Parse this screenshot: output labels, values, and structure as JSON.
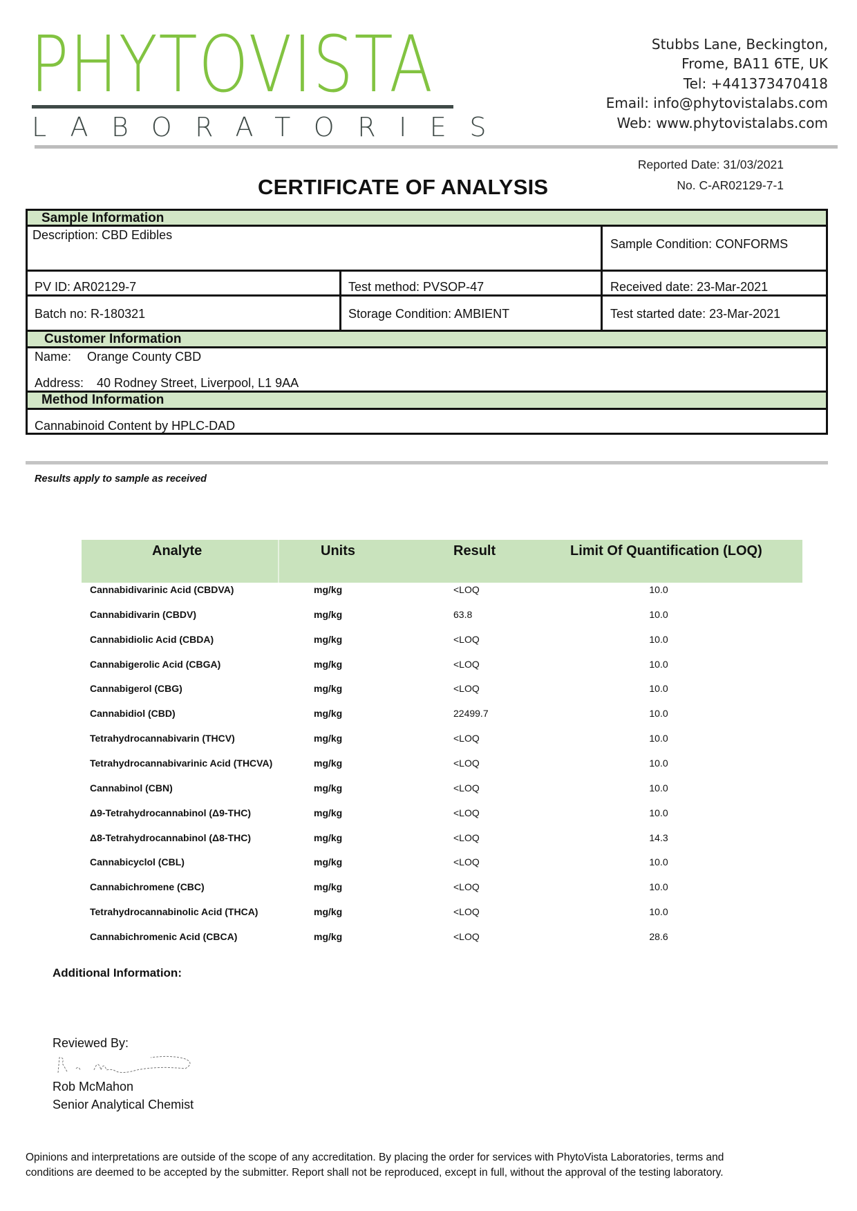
{
  "header": {
    "logo_main": "PHYTOVISTA",
    "logo_sub": "LABORATORIES",
    "address": [
      "Stubbs Lane, Beckington,",
      "Frome, BA11 6TE, UK",
      "Tel: +441373470418",
      "Email: info@phytovistalabs.com",
      "Web: www.phytovistalabs.com"
    ],
    "brand_color": "#82c341"
  },
  "report": {
    "reported_date": "Reported Date: 31/03/2021",
    "number": "No. C-AR02129-7-1",
    "title": "CERTIFICATE OF ANALYSIS"
  },
  "sample": {
    "heading": "Sample Information",
    "description": "Description: CBD Edibles",
    "condition": "Sample Condition: CONFORMS",
    "pv_id": "PV ID: AR02129-7",
    "test_method": "Test method: PVSOP-47",
    "received": "Received date: 23-Mar-2021",
    "batch": "Batch no: R-180321",
    "storage": "Storage Condition: AMBIENT",
    "test_started": "Test started date: 23-Mar-2021"
  },
  "customer": {
    "heading": "Customer Information",
    "name_label": "Name:",
    "name": "Orange County CBD",
    "address_label": "Address:",
    "address": "40 Rodney Street, Liverpool, L1 9AA"
  },
  "method": {
    "heading": "Method Information",
    "text": "Cannabinoid Content by HPLC-DAD"
  },
  "note": "Results apply to sample as received",
  "results": {
    "headers": [
      "Analyte",
      "Units",
      "Result",
      "Limit Of Quantification (LOQ)"
    ],
    "rows": [
      [
        "Cannabidivarinic Acid (CBDVA)",
        "mg/kg",
        "<LOQ",
        "10.0"
      ],
      [
        "Cannabidivarin (CBDV)",
        "mg/kg",
        "63.8",
        "10.0"
      ],
      [
        "Cannabidiolic Acid (CBDA)",
        "mg/kg",
        "<LOQ",
        "10.0"
      ],
      [
        "Cannabigerolic Acid (CBGA)",
        "mg/kg",
        "<LOQ",
        "10.0"
      ],
      [
        "Cannabigerol (CBG)",
        "mg/kg",
        "<LOQ",
        "10.0"
      ],
      [
        "Cannabidiol (CBD)",
        "mg/kg",
        "22499.7",
        "10.0"
      ],
      [
        "Tetrahydrocannabivarin (THCV)",
        "mg/kg",
        "<LOQ",
        "10.0"
      ],
      [
        "Tetrahydrocannabivarinic Acid (THCVA)",
        "mg/kg",
        "<LOQ",
        "10.0"
      ],
      [
        "Cannabinol (CBN)",
        "mg/kg",
        "<LOQ",
        "10.0"
      ],
      [
        "Δ9-Tetrahydrocannabinol (Δ9-THC)",
        "mg/kg",
        "<LOQ",
        "10.0"
      ],
      [
        "Δ8-Tetrahydrocannabinol (Δ8-THC)",
        "mg/kg",
        "<LOQ",
        "14.3"
      ],
      [
        "Cannabicyclol (CBL)",
        "mg/kg",
        "<LOQ",
        "10.0"
      ],
      [
        "Cannabichromene (CBC)",
        "mg/kg",
        "<LOQ",
        "10.0"
      ],
      [
        "Tetrahydrocannabinolic Acid (THCA)",
        "mg/kg",
        "<LOQ",
        "10.0"
      ],
      [
        "Cannabichromenic Acid (CBCA)",
        "mg/kg",
        "<LOQ",
        "28.6"
      ]
    ]
  },
  "additional_info": "Additional Information:",
  "review": {
    "label": "Reviewed By:",
    "name": "Rob McMahon",
    "role": "Senior Analytical Chemist"
  },
  "footer": "Opinions and interpretations are outside of the scope of any accreditation. By placing the order for services with PhytoVista Laboratories, terms and conditions are deemed to be accepted by the submitter. Report shall not be reproduced, except in full, without the approval of the testing laboratory."
}
